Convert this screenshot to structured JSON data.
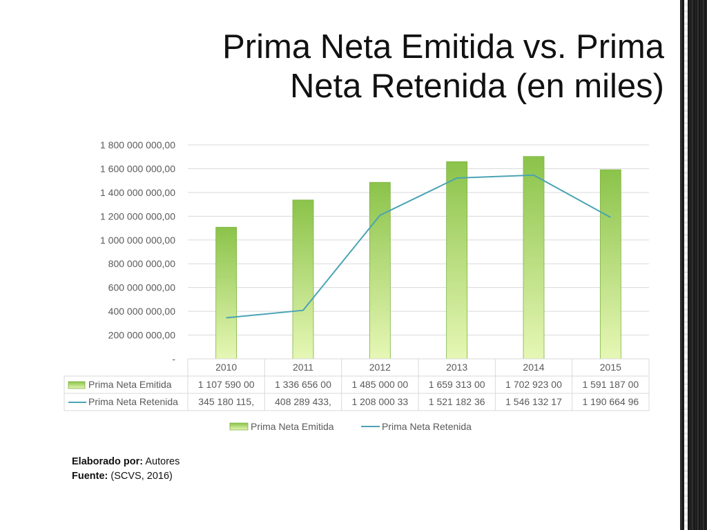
{
  "slide": {
    "title_line1": "Prima Neta Emitida vs. Prima",
    "title_line2": "Neta Retenida (en miles)"
  },
  "credits": {
    "author_label": "Elaborado por:",
    "author_value": "Autores",
    "source_label": "Fuente:",
    "source_value": "(SCVS, 2016)"
  },
  "colors": {
    "bar_top": "#8bc34a",
    "bar_bottom": "#e6f7b5",
    "line": "#4aa3b4",
    "grid": "#d9d9d9",
    "text": "#595959"
  },
  "chart_data": {
    "type": "bar",
    "categories": [
      "2010",
      "2011",
      "2012",
      "2013",
      "2014",
      "2015"
    ],
    "series": [
      {
        "name": "Prima Neta Emitida",
        "type": "bar",
        "values": [
          1107590000,
          1336656000,
          1485000000,
          1659313000,
          1702923000,
          1591187000
        ],
        "table_labels": [
          "1 107 590 00",
          "1 336 656 00",
          "1 485 000 00",
          "1 659 313 00",
          "1 702 923 00",
          "1 591 187 00"
        ]
      },
      {
        "name": "Prima Neta Retenida",
        "type": "line",
        "values": [
          345180115,
          408289433,
          1208000330,
          1521182360,
          1546132170,
          1190664960
        ],
        "table_labels": [
          "345 180 115,",
          "408 289 433,",
          "1 208 000 33",
          "1 521 182 36",
          "1 546 132 17",
          "1 190 664 96"
        ]
      }
    ],
    "ylim": [
      0,
      1800000000
    ],
    "y_ticks": [
      0,
      200000000,
      400000000,
      600000000,
      800000000,
      1000000000,
      1200000000,
      1400000000,
      1600000000,
      1800000000
    ],
    "y_tick_labels": [
      "-",
      "200 000 000,00",
      "400 000 000,00",
      "600 000 000,00",
      "800 000 000,00",
      "1 000 000 000,00",
      "1 200 000 000,00",
      "1 400 000 000,00",
      "1 600 000 000,00",
      "1 800 000 000,00"
    ],
    "grid": true,
    "data_table": true,
    "legend_position": "bottom",
    "title": "",
    "xlabel": "",
    "ylabel": ""
  }
}
